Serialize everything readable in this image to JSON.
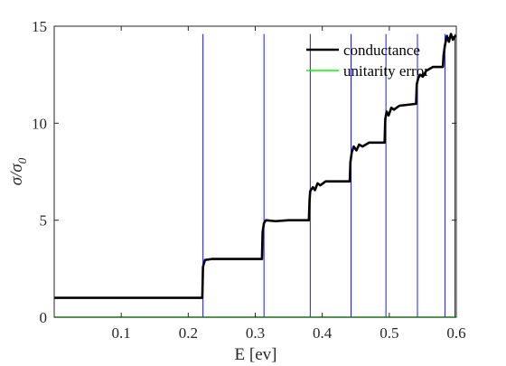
{
  "chart_data": {
    "type": "line",
    "xlabel": "E [ev]",
    "ylabel": "σ/σ0",
    "ylabel_main": "σ/σ",
    "ylabel_sub": "0",
    "xlim": [
      0.0,
      0.6
    ],
    "ylim": [
      0,
      15
    ],
    "xticks": [
      0.1,
      0.2,
      0.3,
      0.4,
      0.5,
      0.6
    ],
    "xtick_labels": [
      "0.1",
      "0.2",
      "0.3",
      "0.4",
      "0.5",
      "0.6"
    ],
    "yticks": [
      0,
      5,
      10,
      15
    ],
    "ytick_labels": [
      "0",
      "5",
      "10",
      "15"
    ],
    "legend_position": "top-right",
    "colors": {
      "conductance": "#000000",
      "unitarity_error": "#00ff00",
      "vertical_lines": "#0000ff",
      "axes": "#262626"
    },
    "vertical_lines_x": [
      0.222,
      0.313,
      0.382,
      0.443,
      0.495,
      0.542,
      0.583,
      0.598
    ],
    "vertical_lines_ymax": 14.6,
    "series": [
      {
        "name": "conductance",
        "x": [
          0.0,
          0.221,
          0.222,
          0.225,
          0.235,
          0.26,
          0.31,
          0.311,
          0.313,
          0.316,
          0.33,
          0.35,
          0.38,
          0.381,
          0.382,
          0.386,
          0.389,
          0.393,
          0.397,
          0.405,
          0.42,
          0.441,
          0.442,
          0.444,
          0.447,
          0.451,
          0.455,
          0.46,
          0.47,
          0.493,
          0.494,
          0.496,
          0.499,
          0.503,
          0.507,
          0.515,
          0.54,
          0.541,
          0.543,
          0.546,
          0.55,
          0.555,
          0.565,
          0.58,
          0.581,
          0.583,
          0.586,
          0.589,
          0.592,
          0.595,
          0.597,
          0.6
        ],
        "values": [
          1.0,
          1.0,
          2.6,
          2.95,
          3.0,
          3.0,
          3.0,
          4.4,
          4.85,
          5.0,
          4.95,
          5.0,
          5.0,
          6.0,
          6.5,
          6.7,
          6.55,
          6.9,
          6.8,
          7.0,
          7.0,
          7.0,
          8.0,
          8.5,
          8.8,
          8.6,
          8.9,
          8.8,
          9.0,
          9.0,
          10.2,
          10.6,
          10.4,
          10.8,
          10.7,
          10.9,
          11.0,
          12.0,
          12.3,
          12.5,
          12.4,
          12.7,
          12.9,
          12.9,
          13.5,
          14.0,
          14.5,
          14.2,
          14.6,
          14.3,
          14.45,
          14.5
        ]
      },
      {
        "name": "unitarity error",
        "x": [
          0.0,
          0.6
        ],
        "values": [
          0.0,
          0.0
        ]
      }
    ]
  }
}
